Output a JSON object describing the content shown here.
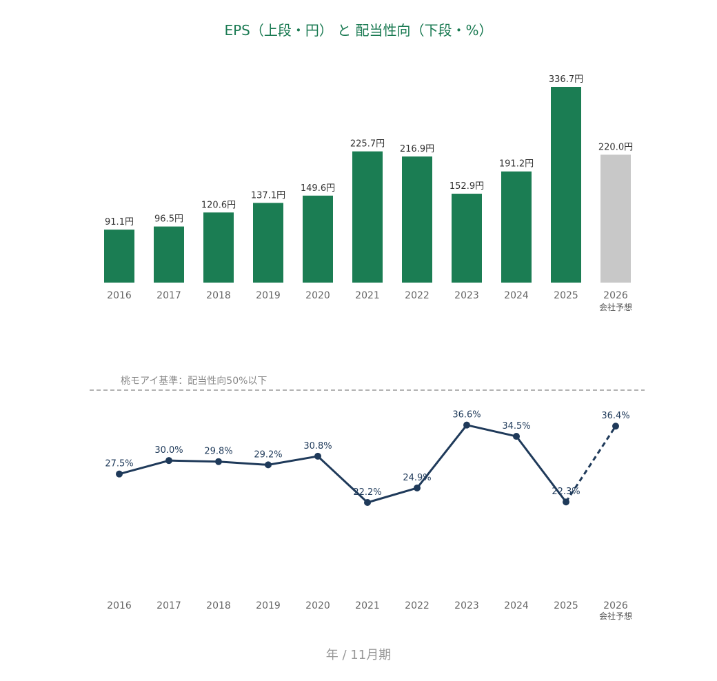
{
  "title": "EPS（上段・円） と 配当性向（下段・%）",
  "footer_unit": "年 / 11月期",
  "colors": {
    "title": "#1a7a52",
    "bar_actual": "#1b7d53",
    "bar_forecast": "#c8c8c8",
    "line": "#1f3a5a",
    "reference": "#999999"
  },
  "chart_data": [
    {
      "type": "bar",
      "categories": [
        "2016",
        "2017",
        "2018",
        "2019",
        "2020",
        "2021",
        "2022",
        "2023",
        "2024",
        "2025",
        "2026"
      ],
      "category_sublabels": [
        "",
        "",
        "",
        "",
        "",
        "",
        "",
        "",
        "",
        "",
        "会社予想"
      ],
      "values": [
        91.1,
        96.5,
        120.6,
        137.1,
        149.6,
        225.7,
        216.9,
        152.9,
        191.2,
        336.7,
        220.0
      ],
      "value_labels": [
        "91.1円",
        "96.5円",
        "120.6円",
        "137.1円",
        "149.6円",
        "225.7円",
        "216.9円",
        "152.9円",
        "191.2円",
        "336.7円",
        "220.0円"
      ],
      "forecast_index": 10,
      "unit": "円",
      "ylim": [
        0,
        340
      ]
    },
    {
      "type": "line",
      "categories": [
        "2016",
        "2017",
        "2018",
        "2019",
        "2020",
        "2021",
        "2022",
        "2023",
        "2024",
        "2025",
        "2026"
      ],
      "category_sublabels": [
        "",
        "",
        "",
        "",
        "",
        "",
        "",
        "",
        "",
        "",
        "会社予想"
      ],
      "values": [
        27.5,
        30.0,
        29.8,
        29.2,
        30.8,
        22.2,
        24.9,
        36.6,
        34.5,
        22.3,
        36.4
      ],
      "value_labels": [
        "27.5%",
        "30.0%",
        "29.8%",
        "29.2%",
        "30.8%",
        "22.2%",
        "24.9%",
        "36.6%",
        "34.5%",
        "22.3%",
        "36.4%"
      ],
      "forecast_index": 10,
      "unit": "%",
      "reference_line": {
        "value": 50,
        "label": "桃モアイ基準：配当性向50%以下"
      }
    }
  ]
}
